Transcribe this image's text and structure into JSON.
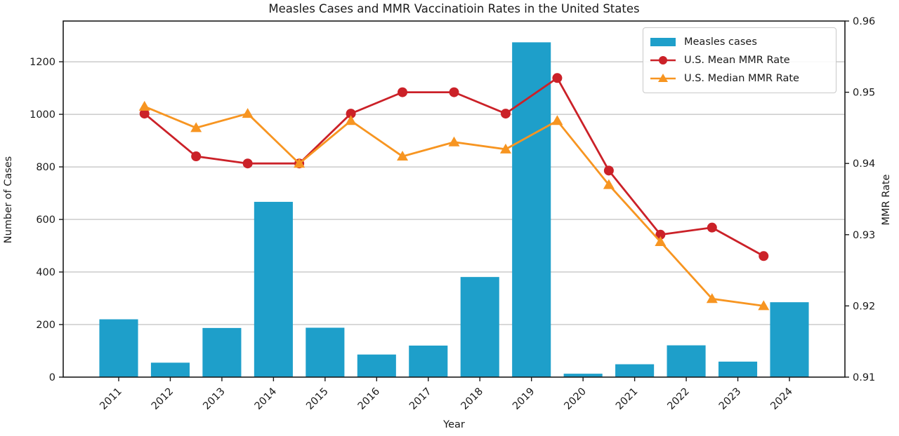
{
  "title": "Measles Cases and MMR Vaccinatioin Rates in the United States",
  "chart_data": {
    "type": "bar",
    "subtype": "bar-and-line-combo-dual-axis",
    "categories": [
      "2011",
      "2012",
      "2013",
      "2014",
      "2015",
      "2016",
      "2017",
      "2018",
      "2019",
      "2020",
      "2021",
      "2022",
      "2023",
      "2024"
    ],
    "series": [
      {
        "name": "Measles cases",
        "kind": "bar",
        "axis": "left",
        "color": "#1e9fca",
        "values": [
          220,
          55,
          187,
          667,
          188,
          86,
          120,
          381,
          1274,
          13,
          49,
          121,
          59,
          285
        ]
      },
      {
        "name": "U.S. Mean MMR Rate",
        "kind": "line",
        "marker": "circle",
        "axis": "right",
        "color": "#cb2128",
        "values": [
          0.947,
          0.941,
          0.94,
          0.94,
          0.947,
          0.95,
          0.95,
          0.947,
          0.952,
          0.939,
          0.93,
          0.931,
          0.927,
          null
        ]
      },
      {
        "name": "U.S. Median MMR Rate",
        "kind": "line",
        "marker": "triangle",
        "axis": "right",
        "color": "#f79521",
        "values": [
          0.948,
          0.945,
          0.947,
          0.94,
          0.946,
          0.941,
          0.943,
          0.942,
          0.946,
          0.937,
          0.929,
          0.921,
          0.92,
          null
        ]
      }
    ],
    "xlabel": "Year",
    "ylabel_left": "Number of Cases",
    "ylabel_right": "MMR Rate",
    "ylim_left": [
      0,
      1355
    ],
    "ylim_right": [
      0.91,
      0.96
    ],
    "yticks_left": [
      0,
      200,
      400,
      600,
      800,
      1000,
      1200
    ],
    "yticks_right": [
      0.91,
      0.92,
      0.93,
      0.94,
      0.95,
      0.96
    ],
    "grid": true,
    "grid_color": "#b0b0b0",
    "legend_position": "top-right",
    "xtick_rotation": 45,
    "line_x_offset_fraction": 0.5
  }
}
